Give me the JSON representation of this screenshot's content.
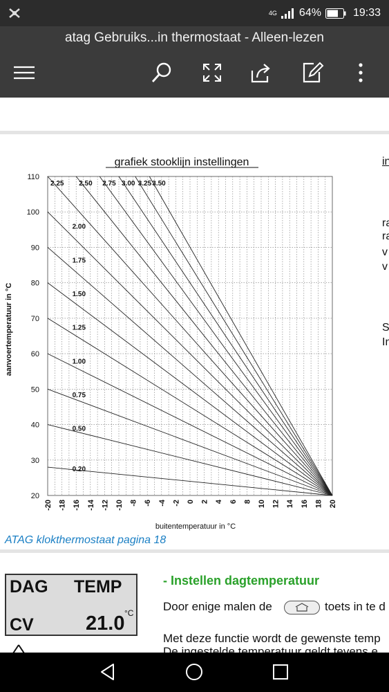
{
  "status_bar": {
    "network": "4G",
    "battery": "64%",
    "time": "19:33",
    "icons": [
      "app-notification-icon",
      "signal-icon",
      "battery-icon"
    ]
  },
  "app_bar": {
    "title": "atag Gebruiks...in thermostaat - Alleen-lezen",
    "toolbar_icons": [
      "menu-icon",
      "search-icon",
      "fullscreen-icon",
      "share-icon",
      "edit-icon",
      "more-icon"
    ]
  },
  "chart_data": {
    "type": "line",
    "title": "grafiek stooklijn instellingen",
    "xlabel": "buitentemperatuur in °C",
    "ylabel": "aanvoertemperatuur in °C",
    "xlim": [
      -20,
      20
    ],
    "ylim": [
      20,
      110
    ],
    "x_ticks": [
      -20,
      -18,
      -16,
      -14,
      -12,
      -10,
      -8,
      -6,
      -4,
      -2,
      0,
      2,
      4,
      6,
      8,
      10,
      12,
      14,
      16,
      18,
      20
    ],
    "x_tick_labels": [
      "-20",
      "-18",
      "-16",
      "-14",
      "-12",
      "-10",
      "-8",
      "-6",
      "-4",
      "-2",
      "0",
      "2",
      "4",
      "6",
      "8",
      "10",
      "12",
      "14",
      "16",
      "18",
      "20"
    ],
    "y_ticks": [
      20,
      30,
      40,
      50,
      60,
      70,
      80,
      90,
      100,
      110
    ],
    "y_tick_labels": [
      "20",
      "30",
      "40",
      "50",
      "60",
      "70",
      "80",
      "90",
      "100",
      "110"
    ],
    "grid": true,
    "series": [
      {
        "name": "0.20",
        "x": [
          -20,
          20
        ],
        "y": [
          28,
          20
        ]
      },
      {
        "name": "0.50",
        "x": [
          -20,
          20
        ],
        "y": [
          40,
          20
        ]
      },
      {
        "name": "0.75",
        "x": [
          -20,
          20
        ],
        "y": [
          50,
          20
        ]
      },
      {
        "name": "1.00",
        "x": [
          -20,
          20
        ],
        "y": [
          60,
          20
        ]
      },
      {
        "name": "1.25",
        "x": [
          -20,
          20
        ],
        "y": [
          70,
          20
        ]
      },
      {
        "name": "1.50",
        "x": [
          -20,
          20
        ],
        "y": [
          80,
          20
        ]
      },
      {
        "name": "1.75",
        "x": [
          -20,
          20
        ],
        "y": [
          90,
          20
        ]
      },
      {
        "name": "2.00",
        "x": [
          -20,
          20
        ],
        "y": [
          100,
          20
        ]
      },
      {
        "name": "2.25",
        "x": [
          -20,
          20
        ],
        "y": [
          110,
          20
        ]
      },
      {
        "name": "2.50",
        "x": [
          -16,
          20
        ],
        "y": [
          110,
          20
        ]
      },
      {
        "name": "2.75",
        "x": [
          -12.7,
          20
        ],
        "y": [
          110,
          20
        ]
      },
      {
        "name": "3.00",
        "x": [
          -10,
          20
        ],
        "y": [
          110,
          20
        ]
      },
      {
        "name": "3.25",
        "x": [
          -7.7,
          20
        ],
        "y": [
          110,
          20
        ]
      },
      {
        "name": "3.50",
        "x": [
          -5.7,
          20
        ],
        "y": [
          110,
          20
        ]
      }
    ]
  },
  "page": {
    "caption": "ATAG  klokthermostaat pagina 18",
    "lcd": {
      "top_left": "DAG",
      "top_right": "TEMP",
      "bottom_left": "CV",
      "bottom_right": "21.0",
      "unit": "°C"
    },
    "section_heading": "- Instellen dagtemperatuur",
    "body_line_1_before": "Door enige malen de",
    "body_line_1_after": "toets in te d",
    "body_line_2": "Met deze functie wordt de gewenste temp",
    "body_line_3": "De ingestelde temperatuur geldt tevens e",
    "right_column_fragments": [
      "in",
      "ra",
      "ra",
      "v",
      "v",
      "S",
      "In"
    ]
  }
}
